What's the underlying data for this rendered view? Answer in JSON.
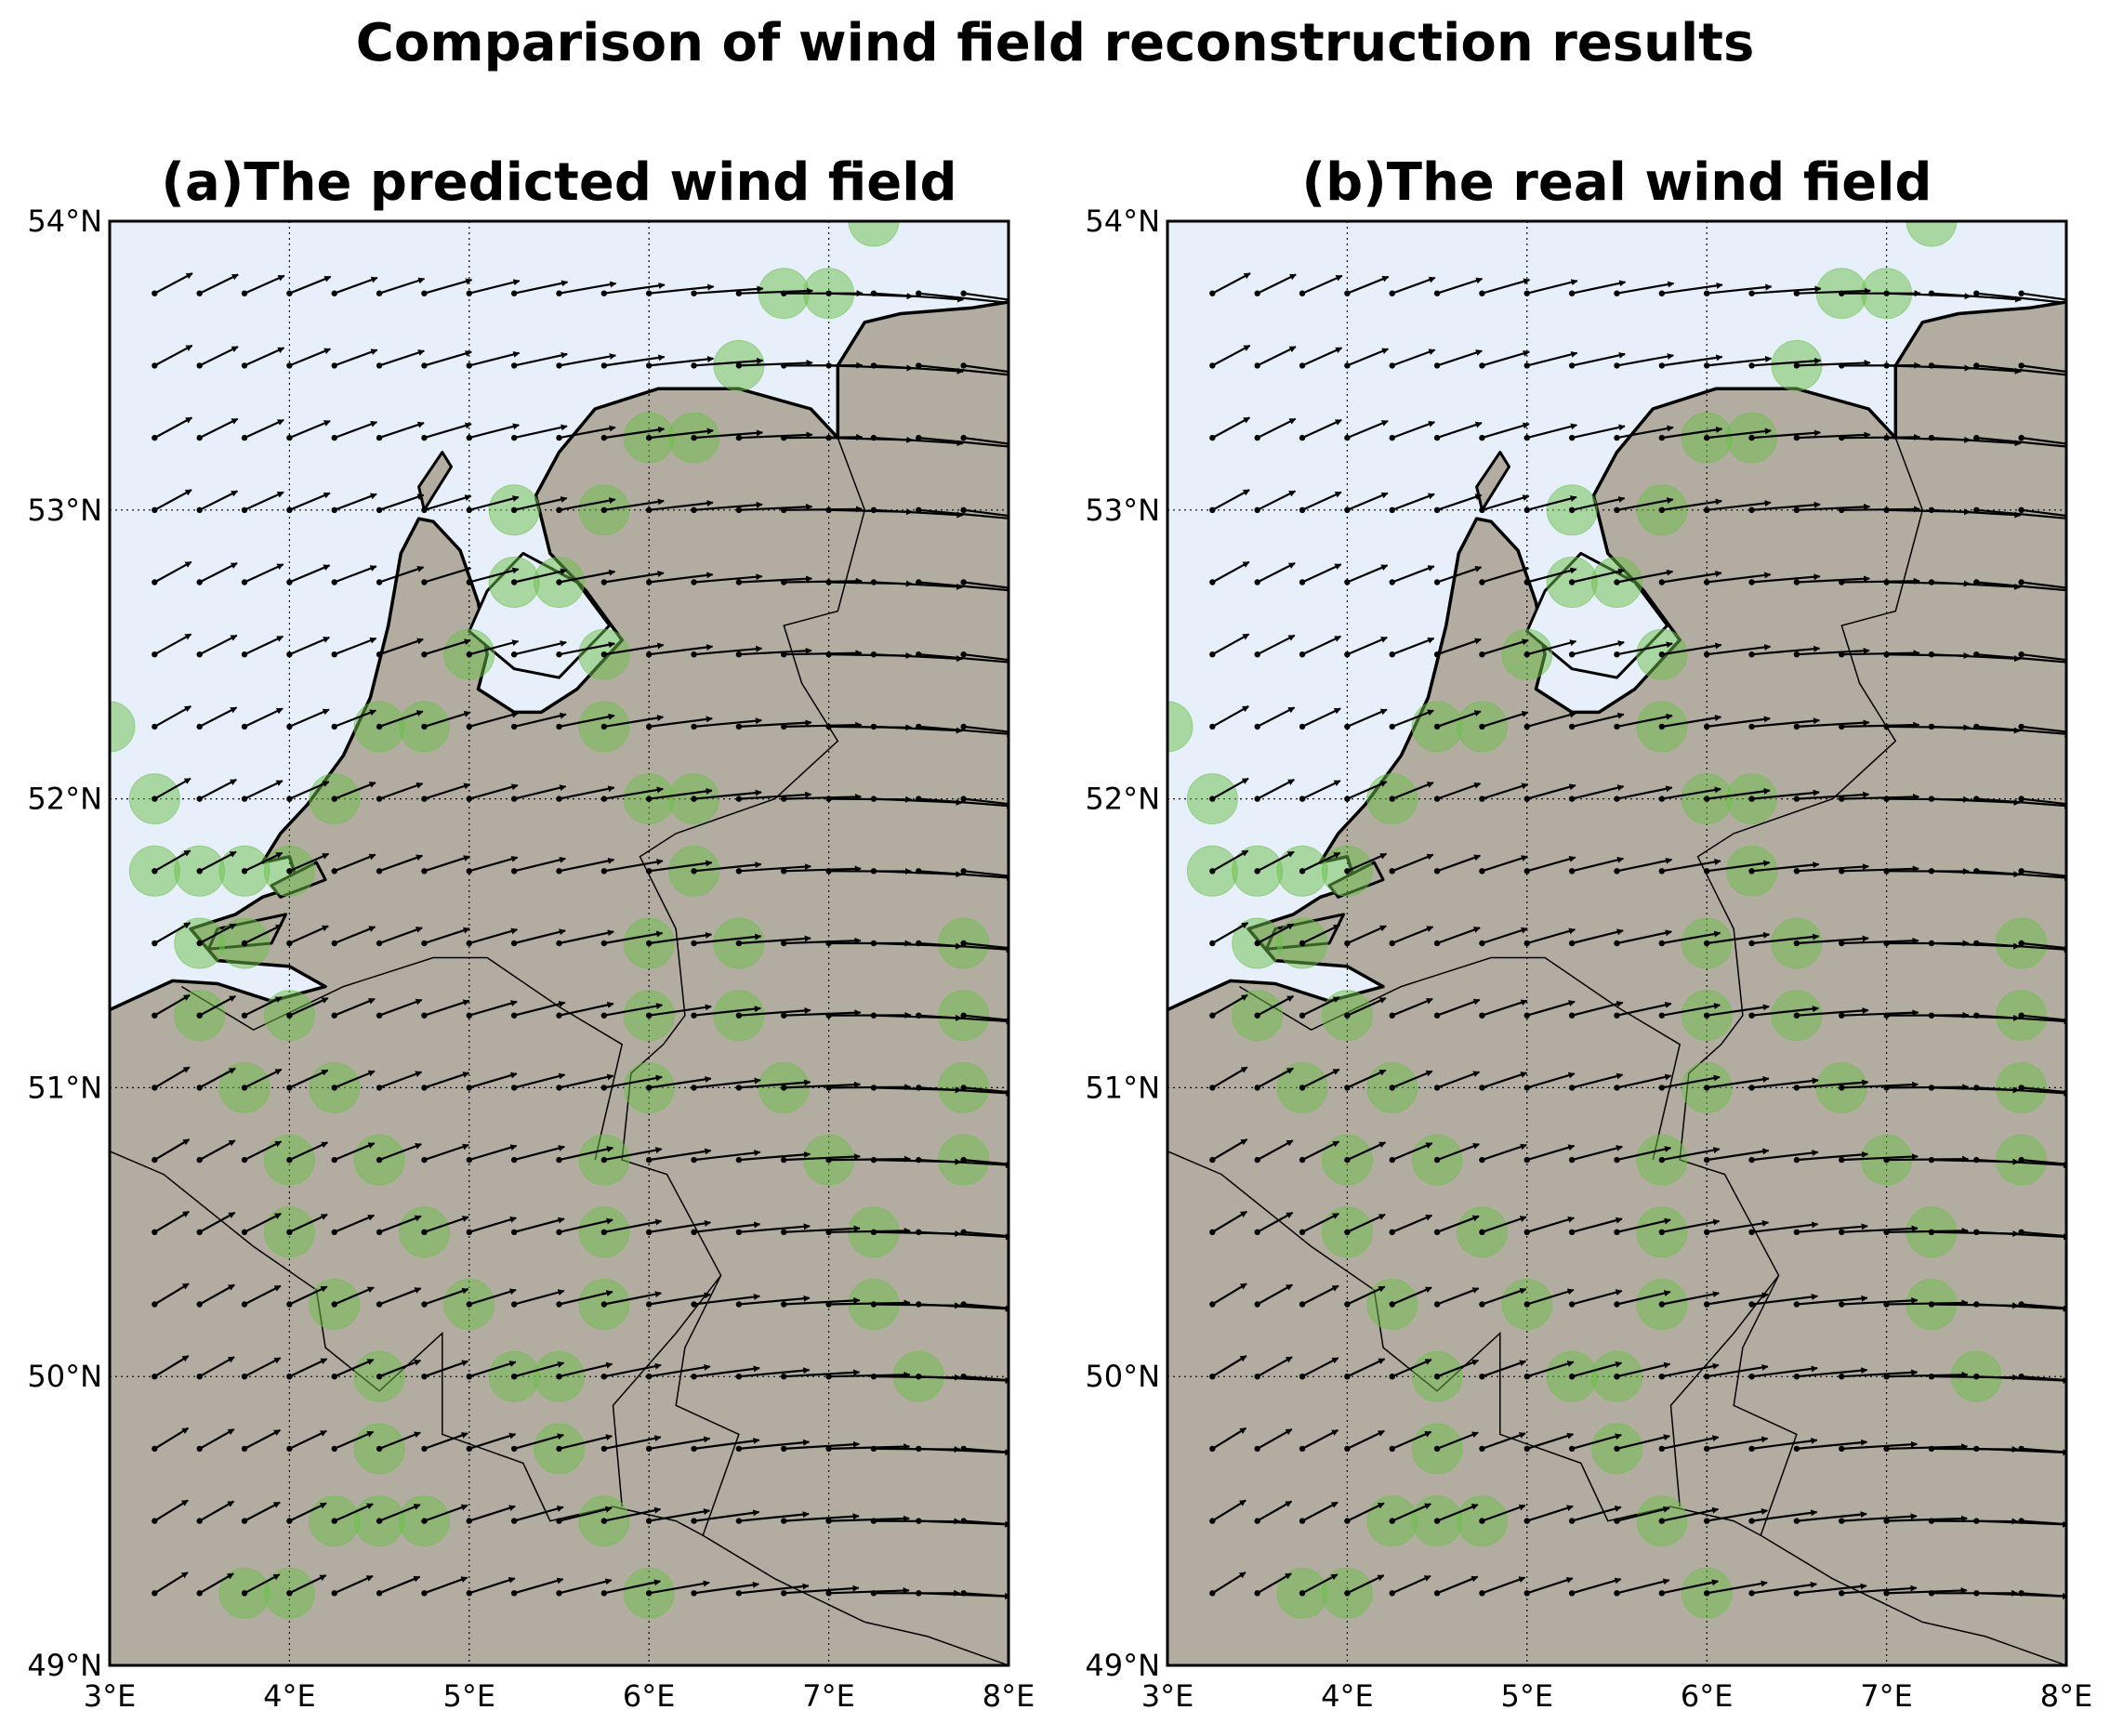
{
  "figure": {
    "title": "Comparison of wind field reconstruction results"
  },
  "colors": {
    "sea": "#e6effa",
    "land": "#b3ada1",
    "station": "#6cc04a",
    "arrow": "#000000",
    "grid": "#000000"
  },
  "chart_data": [
    {
      "type": "map",
      "title": "(a)The predicted wind field",
      "lon_range": [
        3,
        8
      ],
      "lat_range": [
        49,
        54
      ],
      "x_ticks": [
        "3°E",
        "4°E",
        "5°E",
        "6°E",
        "7°E",
        "8°E"
      ],
      "y_ticks": [
        "49°N",
        "50°N",
        "51°N",
        "52°N",
        "53°N",
        "54°N"
      ],
      "grid": "dotted",
      "vector_field": "wind arrows on a 0.25° grid, westerly to south-westerly"
    },
    {
      "type": "map",
      "title": "(b)The real wind field",
      "lon_range": [
        3,
        8
      ],
      "lat_range": [
        49,
        54
      ],
      "x_ticks": [
        "3°E",
        "4°E",
        "5°E",
        "6°E",
        "7°E",
        "8°E"
      ],
      "y_ticks": [
        "49°N",
        "50°N",
        "51°N",
        "52°N",
        "53°N",
        "54°N"
      ],
      "grid": "dotted",
      "vector_field": "wind arrows on a 0.25° grid, westerly to south-westerly"
    }
  ],
  "stations": [
    [
      7.25,
      54.0
    ],
    [
      6.75,
      53.75
    ],
    [
      7.0,
      53.75
    ],
    [
      6.5,
      53.5
    ],
    [
      6.0,
      53.25
    ],
    [
      6.25,
      53.25
    ],
    [
      5.25,
      53.0
    ],
    [
      5.75,
      53.0
    ],
    [
      5.25,
      52.75
    ],
    [
      5.5,
      52.75
    ],
    [
      5.0,
      52.5
    ],
    [
      5.75,
      52.5
    ],
    [
      3.0,
      52.25
    ],
    [
      4.5,
      52.25
    ],
    [
      4.75,
      52.25
    ],
    [
      5.75,
      52.25
    ],
    [
      3.25,
      52.0
    ],
    [
      4.25,
      52.0
    ],
    [
      6.0,
      52.0
    ],
    [
      6.25,
      52.0
    ],
    [
      3.25,
      51.75
    ],
    [
      3.5,
      51.75
    ],
    [
      3.75,
      51.75
    ],
    [
      4.0,
      51.75
    ],
    [
      6.25,
      51.75
    ],
    [
      3.5,
      51.5
    ],
    [
      3.75,
      51.5
    ],
    [
      6.0,
      51.5
    ],
    [
      6.5,
      51.5
    ],
    [
      7.75,
      51.5
    ],
    [
      3.5,
      51.25
    ],
    [
      4.0,
      51.25
    ],
    [
      6.0,
      51.25
    ],
    [
      6.5,
      51.25
    ],
    [
      7.75,
      51.25
    ],
    [
      3.75,
      51.0
    ],
    [
      4.25,
      51.0
    ],
    [
      6.0,
      51.0
    ],
    [
      6.75,
      51.0
    ],
    [
      7.75,
      51.0
    ],
    [
      4.0,
      50.75
    ],
    [
      4.5,
      50.75
    ],
    [
      5.75,
      50.75
    ],
    [
      7.0,
      50.75
    ],
    [
      7.75,
      50.75
    ],
    [
      4.0,
      50.5
    ],
    [
      4.75,
      50.5
    ],
    [
      5.75,
      50.5
    ],
    [
      7.25,
      50.5
    ],
    [
      4.25,
      50.25
    ],
    [
      5.0,
      50.25
    ],
    [
      5.75,
      50.25
    ],
    [
      7.25,
      50.25
    ],
    [
      4.5,
      50.0
    ],
    [
      5.25,
      50.0
    ],
    [
      5.5,
      50.0
    ],
    [
      7.5,
      50.0
    ],
    [
      4.5,
      49.75
    ],
    [
      5.5,
      49.75
    ],
    [
      4.25,
      49.5
    ],
    [
      4.5,
      49.5
    ],
    [
      4.75,
      49.5
    ],
    [
      5.75,
      49.5
    ],
    [
      3.75,
      49.25
    ],
    [
      4.0,
      49.25
    ],
    [
      6.0,
      49.25
    ]
  ],
  "coastline": [
    [
      3.0,
      51.27
    ],
    [
      3.35,
      51.37
    ],
    [
      3.6,
      51.36
    ],
    [
      3.9,
      51.3
    ],
    [
      4.2,
      51.35
    ],
    [
      4.0,
      51.42
    ],
    [
      3.6,
      51.44
    ],
    [
      3.45,
      51.55
    ],
    [
      3.7,
      51.6
    ],
    [
      3.85,
      51.66
    ],
    [
      4.05,
      51.7
    ],
    [
      4.0,
      51.8
    ],
    [
      3.85,
      51.78
    ],
    [
      3.95,
      51.88
    ],
    [
      4.1,
      51.98
    ],
    [
      4.3,
      52.15
    ],
    [
      4.45,
      52.35
    ],
    [
      4.55,
      52.6
    ],
    [
      4.62,
      52.85
    ],
    [
      4.72,
      52.97
    ],
    [
      4.8,
      52.96
    ],
    [
      4.95,
      52.86
    ],
    [
      5.05,
      52.68
    ],
    [
      5.1,
      52.5
    ],
    [
      5.05,
      52.38
    ],
    [
      5.25,
      52.3
    ],
    [
      5.4,
      52.3
    ],
    [
      5.6,
      52.38
    ],
    [
      5.85,
      52.55
    ],
    [
      5.65,
      52.72
    ],
    [
      5.45,
      52.85
    ],
    [
      5.37,
      53.05
    ],
    [
      5.5,
      53.2
    ],
    [
      5.7,
      53.35
    ],
    [
      6.05,
      53.42
    ],
    [
      6.5,
      53.42
    ],
    [
      6.9,
      53.35
    ],
    [
      7.05,
      53.25
    ],
    [
      7.05,
      53.5
    ],
    [
      7.2,
      53.65
    ],
    [
      7.4,
      53.68
    ],
    [
      7.8,
      53.7
    ],
    [
      8.0,
      53.72
    ]
  ],
  "borders": [
    [
      [
        7.05,
        53.25
      ],
      [
        7.2,
        53.0
      ],
      [
        7.05,
        52.65
      ],
      [
        6.75,
        52.6
      ],
      [
        6.85,
        52.4
      ],
      [
        7.05,
        52.2
      ],
      [
        6.7,
        52.0
      ],
      [
        6.15,
        51.88
      ],
      [
        5.95,
        51.8
      ],
      [
        6.15,
        51.55
      ],
      [
        6.2,
        51.25
      ],
      [
        6.08,
        51.15
      ],
      [
        5.9,
        51.05
      ],
      [
        5.85,
        50.75
      ],
      [
        6.1,
        50.7
      ],
      [
        6.4,
        50.35
      ],
      [
        6.2,
        50.1
      ],
      [
        6.15,
        49.9
      ],
      [
        6.5,
        49.8
      ],
      [
        6.3,
        49.45
      ],
      [
        6.7,
        49.3
      ],
      [
        7.2,
        49.15
      ],
      [
        7.55,
        49.1
      ],
      [
        8.0,
        49.0
      ]
    ],
    [
      [
        3.4,
        51.35
      ],
      [
        3.8,
        51.2
      ],
      [
        4.3,
        51.35
      ],
      [
        4.8,
        51.45
      ],
      [
        5.1,
        51.45
      ],
      [
        5.5,
        51.28
      ],
      [
        5.85,
        51.15
      ],
      [
        5.7,
        50.75
      ]
    ],
    [
      [
        3.0,
        50.78
      ],
      [
        3.3,
        50.7
      ],
      [
        3.8,
        50.45
      ],
      [
        4.15,
        50.3
      ],
      [
        4.2,
        50.1
      ],
      [
        4.5,
        49.95
      ],
      [
        4.85,
        50.15
      ],
      [
        4.85,
        49.8
      ],
      [
        5.3,
        49.7
      ],
      [
        5.45,
        49.5
      ],
      [
        5.8,
        49.55
      ],
      [
        6.15,
        49.5
      ],
      [
        6.3,
        49.45
      ]
    ],
    [
      [
        5.85,
        49.55
      ],
      [
        5.8,
        49.9
      ],
      [
        6.15,
        50.15
      ],
      [
        6.4,
        50.35
      ]
    ]
  ],
  "lakes": [
    [
      [
        5.0,
        52.58
      ],
      [
        5.25,
        52.45
      ],
      [
        5.5,
        52.42
      ],
      [
        5.78,
        52.6
      ],
      [
        5.6,
        52.75
      ],
      [
        5.3,
        52.85
      ],
      [
        5.1,
        52.72
      ]
    ]
  ],
  "islands": [
    [
      [
        4.75,
        53.0
      ],
      [
        4.9,
        53.15
      ],
      [
        4.85,
        53.2
      ],
      [
        4.72,
        53.08
      ]
    ],
    [
      [
        3.6,
        51.55
      ],
      [
        3.98,
        51.6
      ],
      [
        3.9,
        51.5
      ],
      [
        3.55,
        51.48
      ]
    ],
    [
      [
        3.9,
        51.7
      ],
      [
        4.15,
        51.78
      ],
      [
        4.2,
        51.72
      ],
      [
        3.95,
        51.66
      ]
    ]
  ]
}
